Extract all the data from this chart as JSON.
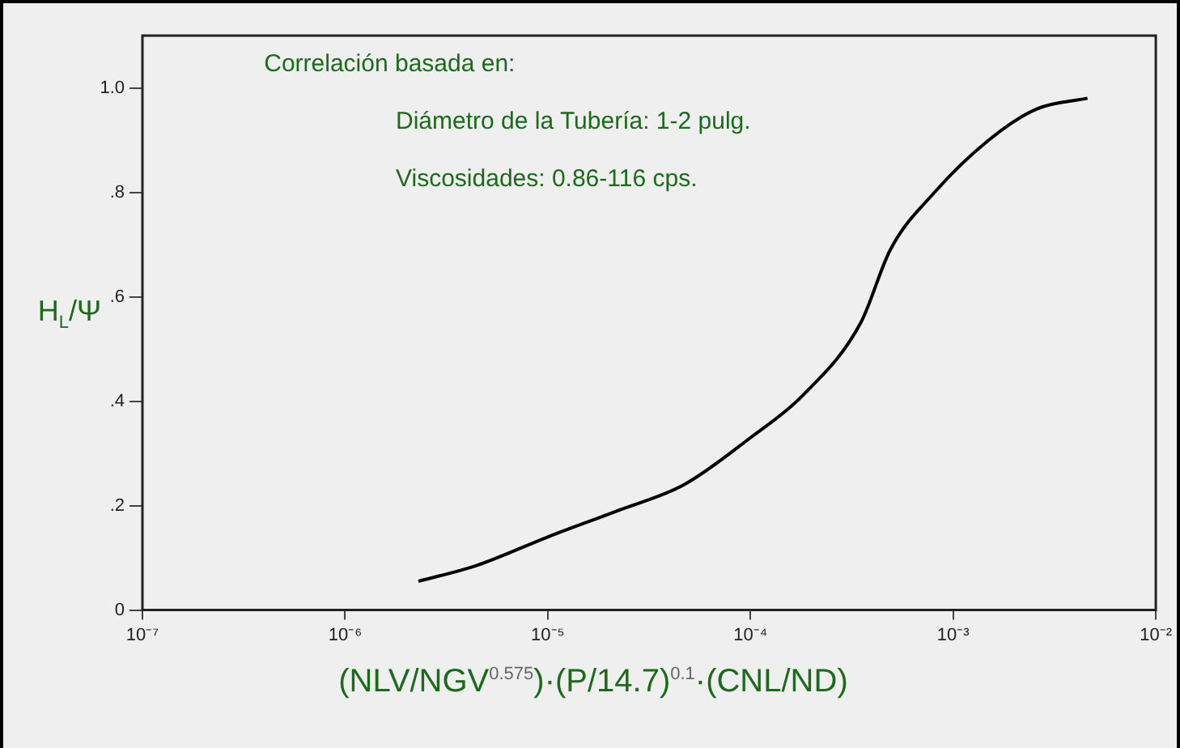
{
  "chart_data": {
    "type": "line",
    "xlabel": "(NLV/NGV$^{0.575}$)·(P/14.7)$^{0.1}$·(CNL/ND)",
    "ylabel": "H$_{L}$/Ψ",
    "annotations": [
      "Correlación basada en:",
      "Diámetro de la Tubería: 1-2 pulg.",
      "Viscosidades: 0.86-116 cps."
    ],
    "log": "x",
    "x": [
      2.3e-06,
      4.5e-06,
      1e-05,
      2.2e-05,
      4.7e-05,
      0.0001,
      0.00018,
      0.00035,
      0.00049,
      0.00081,
      0.0015,
      0.0026,
      0.0046
    ],
    "series": [
      {
        "color": "#000000",
        "values": [
          0.055,
          0.086,
          0.14,
          0.19,
          0.24,
          0.33,
          0.41,
          0.55,
          0.69,
          0.8,
          0.9,
          0.96,
          0.98
        ]
      }
    ],
    "xlim": [
      1e-07,
      0.01
    ],
    "xticks": [
      {
        "value": 1e-07,
        "label": "10⁻⁷"
      },
      {
        "value": 1e-06,
        "label": "10⁻⁶"
      },
      {
        "value": 1e-05,
        "label": "10⁻⁵"
      },
      {
        "value": 0.0001,
        "label": "10⁻⁴"
      },
      {
        "value": 0.001,
        "label": "10⁻³"
      },
      {
        "value": 0.01,
        "label": "10⁻²"
      }
    ],
    "ylim": [
      0,
      1.1
    ],
    "yticks": [
      0,
      {
        "value": 0.2,
        "label": ".2"
      },
      {
        "value": 0.4,
        "label": ".4"
      },
      {
        "value": 0.6,
        "label": ".6"
      },
      {
        "value": 0.8,
        "label": ".8"
      },
      {
        "value": 1.0,
        "label": "1.0"
      }
    ],
    "grid": false,
    "legend": false,
    "marker": "none",
    "line_style": "solid"
  }
}
